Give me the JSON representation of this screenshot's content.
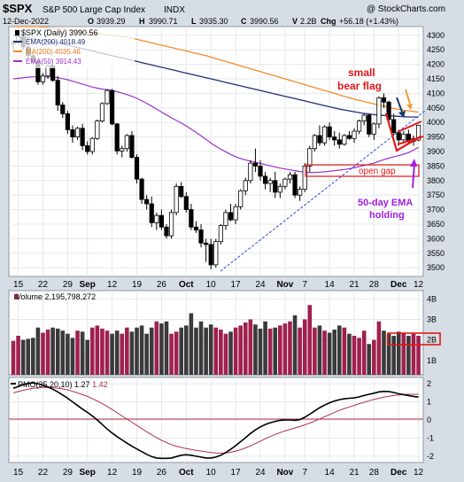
{
  "header": {
    "symbol": "$SPX",
    "name": "S&P 500 Large Cap Index",
    "exchange": "INDX",
    "credit": "@ StockCharts.com",
    "date": "12-Dec-2022",
    "open_label": "O",
    "open": "3939.29",
    "high_label": "H",
    "high": "3990.71",
    "low_label": "L",
    "low": "3935.30",
    "close_label": "C",
    "close": "3990.56",
    "vol_label": "V",
    "vol": "2.2B",
    "chg_label": "Chg",
    "chg": "+56.18 (+1.43%)"
  },
  "legend": {
    "price": "$SPX (Daily) 3990.56",
    "ema200": "EMA(200) 4018.49",
    "ma200": "MA(200) 4035.46",
    "ema50": "EMA(50) 3914.43"
  },
  "annotations": {
    "bear_flag_line1": "small",
    "bear_flag_line2": "bear flag",
    "open_gap": "open gap",
    "ema_hold_line1": "50-day EMA",
    "ema_hold_line2": "holding"
  },
  "volume_legend": {
    "label": "Volume",
    "value": "2,195,798,272"
  },
  "pmo_legend": {
    "label": "PMO(35,20,10)",
    "value1": "1.27",
    "value2": "1.42"
  },
  "colors": {
    "up_candle": "#ffffff",
    "down_candle": "#000000",
    "ema200": "#1f2f7a",
    "ma200": "#f08c2a",
    "ema50": "#9b32c8",
    "volume_up": "#a0204f",
    "volume_down": "#3a3a3a",
    "annotation_red": "#e01818",
    "annotation_purple": "#a020e0",
    "annotation_orange": "#f29a2e",
    "annotation_navy": "#1a3a6a",
    "pmo_line": "#000000",
    "pmo_signal": "#b0304a",
    "trendline": "#2a44d8"
  },
  "chart_data": {
    "type": "candlestick",
    "price_axis_ticks": [
      3500,
      3550,
      3600,
      3650,
      3700,
      3750,
      3800,
      3850,
      3900,
      3950,
      4000,
      4050,
      4100,
      4150,
      4200,
      4250,
      4300
    ],
    "price_ylim": [
      3470,
      4330
    ],
    "x_labels": [
      "15",
      "22",
      "29",
      "Sep",
      "12",
      "19",
      "26",
      "Oct",
      "10",
      "17",
      "24",
      "Nov",
      "7",
      "14",
      "21",
      "28",
      "Dec",
      "12"
    ],
    "x_label_index": [
      1,
      6,
      11,
      15,
      20,
      25,
      30,
      35,
      40,
      45,
      50,
      55,
      59,
      64,
      69,
      73,
      78,
      82
    ],
    "bold_labels": [
      "Sep",
      "Oct",
      "Nov",
      "Dec"
    ],
    "candles": [
      [
        4270,
        4280,
        4250,
        4275
      ],
      [
        4275,
        4300,
        4270,
        4295
      ],
      [
        4295,
        4305,
        4250,
        4260
      ],
      [
        4260,
        4270,
        4220,
        4230
      ],
      [
        4230,
        4240,
        4200,
        4210
      ],
      [
        4210,
        4215,
        4130,
        4140
      ],
      [
        4140,
        4170,
        4130,
        4160
      ],
      [
        4160,
        4200,
        4150,
        4195
      ],
      [
        4195,
        4200,
        4140,
        4145
      ],
      [
        4145,
        4160,
        4040,
        4060
      ],
      [
        4060,
        4070,
        4015,
        4030
      ],
      [
        4030,
        4040,
        3960,
        3975
      ],
      [
        3975,
        3990,
        3930,
        3950
      ],
      [
        3950,
        3985,
        3940,
        3980
      ],
      [
        3980,
        3995,
        3905,
        3920
      ],
      [
        3920,
        3935,
        3890,
        3900
      ],
      [
        3900,
        3950,
        3890,
        3945
      ],
      [
        3945,
        4010,
        3940,
        4005
      ],
      [
        4005,
        4070,
        4000,
        4065
      ],
      [
        4065,
        4115,
        4060,
        4110
      ],
      [
        4110,
        4115,
        3990,
        3995
      ],
      [
        3995,
        3998,
        3890,
        3902
      ],
      [
        3902,
        3920,
        3880,
        3910
      ],
      [
        3910,
        3960,
        3900,
        3955
      ],
      [
        3955,
        3970,
        3875,
        3880
      ],
      [
        3880,
        3890,
        3790,
        3805
      ],
      [
        3805,
        3810,
        3720,
        3735
      ],
      [
        3735,
        3750,
        3700,
        3720
      ],
      [
        3720,
        3745,
        3640,
        3655
      ],
      [
        3655,
        3690,
        3630,
        3680
      ],
      [
        3680,
        3700,
        3630,
        3640
      ],
      [
        3640,
        3650,
        3600,
        3610
      ],
      [
        3610,
        3700,
        3600,
        3690
      ],
      [
        3690,
        3790,
        3680,
        3780
      ],
      [
        3780,
        3795,
        3740,
        3745
      ],
      [
        3745,
        3760,
        3690,
        3700
      ],
      [
        3700,
        3720,
        3630,
        3640
      ],
      [
        3640,
        3660,
        3620,
        3630
      ],
      [
        3630,
        3650,
        3570,
        3585
      ],
      [
        3585,
        3600,
        3520,
        3580
      ],
      [
        3580,
        3600,
        3495,
        3510
      ],
      [
        3510,
        3600,
        3500,
        3590
      ],
      [
        3590,
        3650,
        3580,
        3645
      ],
      [
        3645,
        3700,
        3630,
        3690
      ],
      [
        3690,
        3720,
        3660,
        3665
      ],
      [
        3665,
        3720,
        3650,
        3710
      ],
      [
        3710,
        3770,
        3700,
        3765
      ],
      [
        3765,
        3810,
        3750,
        3800
      ],
      [
        3800,
        3870,
        3790,
        3860
      ],
      [
        3860,
        3910,
        3830,
        3850
      ],
      [
        3850,
        3870,
        3800,
        3815
      ],
      [
        3815,
        3830,
        3770,
        3790
      ],
      [
        3790,
        3810,
        3760,
        3800
      ],
      [
        3800,
        3830,
        3740,
        3760
      ],
      [
        3760,
        3790,
        3740,
        3780
      ],
      [
        3780,
        3810,
        3770,
        3805
      ],
      [
        3805,
        3830,
        3790,
        3820
      ],
      [
        3820,
        3830,
        3740,
        3750
      ],
      [
        3750,
        3780,
        3730,
        3770
      ],
      [
        3770,
        3860,
        3760,
        3850
      ],
      [
        3850,
        3920,
        3830,
        3910
      ],
      [
        3910,
        3960,
        3900,
        3955
      ],
      [
        3955,
        3990,
        3920,
        3930
      ],
      [
        3930,
        3990,
        3920,
        3985
      ],
      [
        3985,
        4000,
        3940,
        3950
      ],
      [
        3950,
        3970,
        3920,
        3940
      ],
      [
        3940,
        3965,
        3910,
        3925
      ],
      [
        3925,
        3960,
        3920,
        3955
      ],
      [
        3955,
        3970,
        3940,
        3945
      ],
      [
        3945,
        3980,
        3930,
        3970
      ],
      [
        3970,
        4010,
        3960,
        4005
      ],
      [
        4005,
        4030,
        3990,
        4025
      ],
      [
        4025,
        4030,
        3950,
        3960
      ],
      [
        3960,
        4000,
        3940,
        3995
      ],
      [
        3995,
        4090,
        3980,
        4085
      ],
      [
        4085,
        4100,
        4050,
        4070
      ],
      [
        4070,
        4075,
        4000,
        4010
      ],
      [
        4010,
        4030,
        3955,
        3965
      ],
      [
        3965,
        3975,
        3920,
        3940
      ],
      [
        3940,
        3970,
        3930,
        3960
      ],
      [
        3960,
        3975,
        3930,
        3935
      ],
      [
        3935,
        3955,
        3920,
        3945
      ],
      [
        3939.29,
        3990.71,
        3935.3,
        3990.56
      ]
    ],
    "ema200": [
      4300,
      4297,
      4294,
      4291,
      4288,
      4285,
      4282,
      4279,
      4276,
      4273,
      4270,
      4266,
      4262,
      4258,
      4254,
      4250,
      4246,
      4242,
      4238,
      4234,
      4230,
      4226,
      4222,
      4218,
      4214,
      4210,
      4206,
      4202,
      4198,
      4194,
      4190,
      4186,
      4182,
      4178,
      4174,
      4170,
      4166,
      4162,
      4158,
      4154,
      4150,
      4146,
      4142,
      4138,
      4134,
      4130,
      4126,
      4122,
      4118,
      4114,
      4110,
      4106,
      4102,
      4098,
      4094,
      4090,
      4086,
      4082,
      4078,
      4074,
      4070,
      4066,
      4062,
      4058,
      4054,
      4050,
      4046,
      4043,
      4040,
      4037,
      4034,
      4031,
      4029,
      4027,
      4025,
      4024,
      4023,
      4022,
      4021,
      4020,
      4019,
      4019,
      4018.49
    ],
    "ma200": [
      4330,
      4330,
      4330,
      4330,
      4330,
      4330,
      4328,
      4326,
      4324,
      4322,
      4320,
      4318,
      4316,
      4314,
      4312,
      4310,
      4308,
      4306,
      4304,
      4302,
      4300,
      4298,
      4296,
      4294,
      4290,
      4286,
      4282,
      4278,
      4274,
      4270,
      4266,
      4262,
      4258,
      4254,
      4250,
      4246,
      4242,
      4238,
      4234,
      4230,
      4225,
      4220,
      4215,
      4210,
      4205,
      4200,
      4195,
      4190,
      4185,
      4180,
      4175,
      4170,
      4165,
      4160,
      4155,
      4150,
      4145,
      4140,
      4135,
      4130,
      4125,
      4120,
      4115,
      4110,
      4105,
      4100,
      4095,
      4090,
      4085,
      4080,
      4076,
      4072,
      4068,
      4064,
      4060,
      4056,
      4052,
      4048,
      4045,
      4042,
      4040,
      4038,
      4035.46
    ],
    "ema50": [
      4150,
      4152,
      4154,
      4156,
      4157,
      4157,
      4157,
      4157,
      4156,
      4154,
      4151,
      4147,
      4142,
      4137,
      4132,
      4127,
      4122,
      4118,
      4115,
      4113,
      4110,
      4106,
      4101,
      4096,
      4090,
      4083,
      4075,
      4066,
      4056,
      4046,
      4036,
      4026,
      4016,
      4007,
      3998,
      3988,
      3977,
      3966,
      3954,
      3942,
      3929,
      3918,
      3908,
      3899,
      3890,
      3882,
      3876,
      3871,
      3867,
      3863,
      3859,
      3855,
      3851,
      3847,
      3843,
      3840,
      3837,
      3834,
      3831,
      3829,
      3828,
      3828,
      3829,
      3830,
      3832,
      3834,
      3836,
      3838,
      3841,
      3844,
      3848,
      3852,
      3856,
      3860,
      3866,
      3872,
      3877,
      3882,
      3886,
      3891,
      3896,
      3905,
      3914.43
    ],
    "volume_axis_ticks": [
      "1B",
      "2B",
      "3B",
      "4B"
    ],
    "volume_ylim": [
      0.3,
      4.4
    ],
    "volume": [
      1.95,
      2.2,
      2.0,
      2.05,
      2.1,
      2.6,
      2.35,
      2.5,
      2.6,
      2.55,
      2.45,
      2.3,
      2.1,
      2.45,
      2.4,
      2.0,
      2.6,
      2.7,
      2.55,
      2.45,
      2.3,
      2.45,
      2.3,
      2.6,
      2.4,
      2.6,
      2.7,
      2.3,
      2.6,
      2.9,
      2.8,
      2.9,
      2.3,
      2.4,
      2.6,
      2.7,
      3.3,
      2.6,
      2.9,
      2.6,
      2.75,
      2.6,
      2.5,
      2.3,
      2.4,
      2.6,
      2.7,
      2.85,
      3.0,
      2.75,
      2.55,
      2.9,
      2.55,
      2.6,
      2.7,
      2.8,
      2.9,
      3.2,
      2.6,
      3.0,
      3.7,
      2.6,
      2.7,
      2.45,
      2.35,
      2.5,
      2.7,
      2.6,
      2.3,
      2.2,
      2.1,
      2.45,
      1.8,
      2.0,
      2.9,
      2.45,
      2.3,
      2.2,
      2.4,
      2.35,
      2.2,
      2.3,
      2.2
    ],
    "pmo_axis_ticks": [
      -2,
      -1,
      0,
      1,
      2
    ],
    "pmo_ylim": [
      -2.35,
      2.35
    ],
    "pmo": [
      1.75,
      1.85,
      1.95,
      2.02,
      2.05,
      2.0,
      1.92,
      1.82,
      1.7,
      1.55,
      1.38,
      1.2,
      1.0,
      0.8,
      0.6,
      0.42,
      0.22,
      0.0,
      -0.25,
      -0.5,
      -0.72,
      -0.92,
      -1.1,
      -1.28,
      -1.45,
      -1.6,
      -1.75,
      -1.9,
      -2.02,
      -2.1,
      -2.12,
      -2.12,
      -2.1,
      -2.02,
      -1.95,
      -1.92,
      -1.95,
      -2.0,
      -2.05,
      -2.1,
      -2.1,
      -2.05,
      -1.95,
      -1.8,
      -1.62,
      -1.42,
      -1.2,
      -0.98,
      -0.75,
      -0.55,
      -0.38,
      -0.25,
      -0.15,
      -0.08,
      -0.02,
      0.0,
      0.0,
      -0.02,
      0.02,
      0.15,
      0.32,
      0.5,
      0.68,
      0.82,
      0.95,
      1.05,
      1.12,
      1.17,
      1.2,
      1.22,
      1.28,
      1.35,
      1.42,
      1.48,
      1.55,
      1.58,
      1.57,
      1.52,
      1.45,
      1.4,
      1.35,
      1.3,
      1.27
    ],
    "pmo_signal": [
      1.5,
      1.57,
      1.64,
      1.7,
      1.75,
      1.78,
      1.8,
      1.8,
      1.79,
      1.76,
      1.72,
      1.66,
      1.58,
      1.5,
      1.4,
      1.3,
      1.18,
      1.05,
      0.9,
      0.75,
      0.58,
      0.4,
      0.22,
      0.05,
      -0.12,
      -0.3,
      -0.48,
      -0.65,
      -0.82,
      -0.98,
      -1.12,
      -1.25,
      -1.36,
      -1.45,
      -1.52,
      -1.58,
      -1.63,
      -1.68,
      -1.72,
      -1.76,
      -1.8,
      -1.82,
      -1.83,
      -1.82,
      -1.78,
      -1.72,
      -1.64,
      -1.54,
      -1.43,
      -1.3,
      -1.17,
      -1.04,
      -0.92,
      -0.8,
      -0.7,
      -0.6,
      -0.52,
      -0.44,
      -0.36,
      -0.27,
      -0.17,
      -0.06,
      0.06,
      0.18,
      0.3,
      0.42,
      0.53,
      0.63,
      0.72,
      0.81,
      0.9,
      0.98,
      1.06,
      1.13,
      1.2,
      1.26,
      1.31,
      1.35,
      1.38,
      1.4,
      1.42,
      1.42,
      1.42
    ]
  }
}
